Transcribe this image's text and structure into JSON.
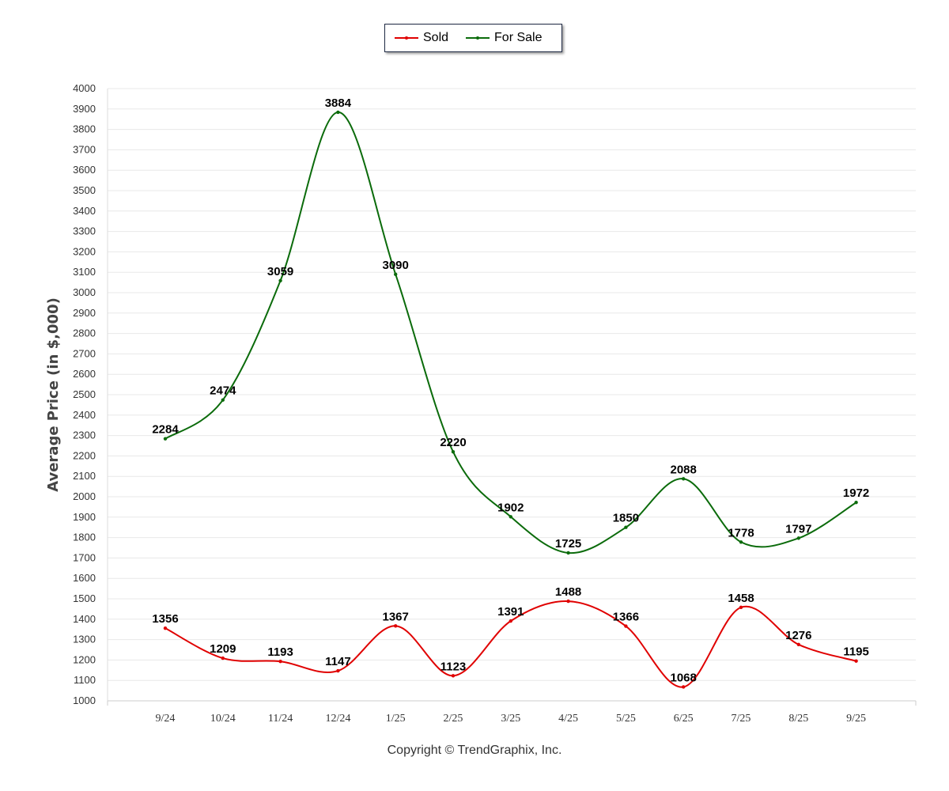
{
  "chart_data": {
    "type": "line",
    "categories": [
      "9/24",
      "10/24",
      "11/24",
      "12/24",
      "1/25",
      "2/25",
      "3/25",
      "4/25",
      "5/25",
      "6/25",
      "7/25",
      "8/25",
      "9/25"
    ],
    "series": [
      {
        "name": "Sold",
        "color": "#e00000",
        "values": [
          1356,
          1209,
          1193,
          1147,
          1367,
          1123,
          1391,
          1488,
          1366,
          1068,
          1458,
          1276,
          1195
        ]
      },
      {
        "name": "For Sale",
        "color": "#0b6b0b",
        "values": [
          2284,
          2474,
          3059,
          3884,
          3090,
          2220,
          1902,
          1725,
          1850,
          2088,
          1778,
          1797,
          1972
        ]
      }
    ],
    "ylabel": "Average Price (in $,000)",
    "xlabel": "",
    "ylim": [
      1000,
      4000
    ],
    "ytick_step": 100,
    "grid": true,
    "legend_position": "top-center"
  },
  "footer": {
    "copyright": "Copyright © TrendGraphix, Inc."
  }
}
